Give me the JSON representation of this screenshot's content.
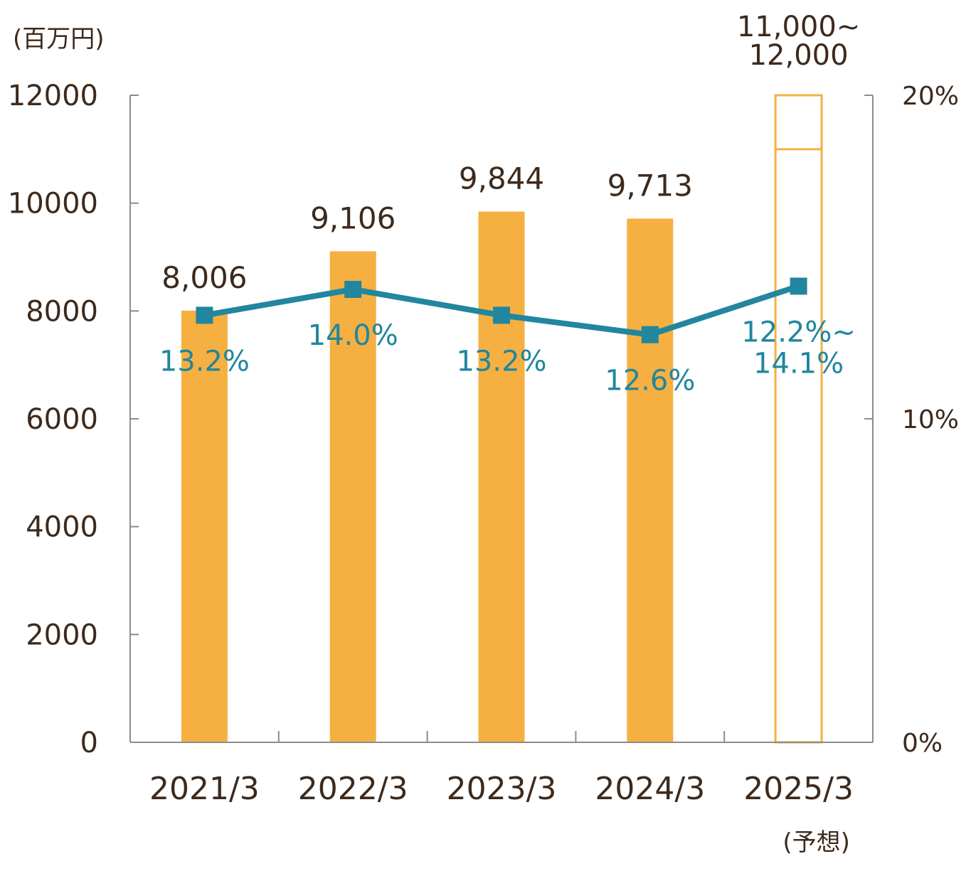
{
  "chart_data": {
    "type": "bar",
    "left_axis_unit": "(百万円)",
    "categories": [
      "2021/3",
      "2022/3",
      "2023/3",
      "2024/3",
      "2025/3"
    ],
    "category_note": {
      "index": 4,
      "text": "(予想)"
    },
    "series": [
      {
        "axis": "left",
        "type": "bar",
        "values": [
          8006,
          9106,
          9844,
          9713,
          null
        ],
        "labels": [
          "8,006",
          "9,106",
          "9,844",
          "9,713",
          ""
        ],
        "forecast": {
          "index": 4,
          "range": [
            11000,
            12000
          ],
          "label_lines": [
            "11,000~",
            "12,000"
          ]
        }
      },
      {
        "axis": "right",
        "type": "line",
        "values": [
          13.2,
          14.0,
          13.2,
          12.6,
          14.1
        ],
        "labels": [
          [
            "13.2%"
          ],
          [
            "14.0%"
          ],
          [
            "13.2%"
          ],
          [
            "12.6%"
          ],
          [
            "12.2%~",
            "14.1%"
          ]
        ]
      }
    ],
    "left_axis": {
      "ylim": [
        0,
        12000
      ],
      "ticks": [
        "0",
        "2000",
        "4000",
        "6000",
        "8000",
        "10000",
        "12000"
      ]
    },
    "right_axis": {
      "ylim": [
        0,
        20
      ],
      "ticks": [
        "0%",
        "10%",
        "20%"
      ]
    },
    "colors": {
      "bar": "#f5b041",
      "line": "#21869e",
      "axis": "#8c8c8c",
      "text": "#3d2a1c"
    },
    "grid": false
  }
}
